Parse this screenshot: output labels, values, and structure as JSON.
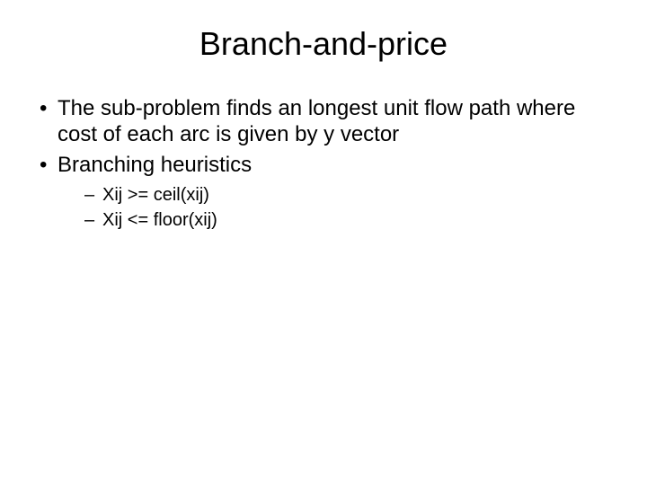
{
  "slide": {
    "title": "Branch-and-price",
    "bullets": [
      "The sub-problem finds an longest unit flow path where cost of each arc is given by y vector",
      "Branching heuristics"
    ],
    "sub_bullets": [
      "Xij >= ceil(xij)",
      "Xij <= floor(xij)"
    ]
  },
  "style": {
    "background_color": "#ffffff",
    "text_color": "#000000",
    "title_fontsize": 36,
    "bullet_fontsize": 24,
    "sub_bullet_fontsize": 20,
    "font_family": "Arial"
  }
}
